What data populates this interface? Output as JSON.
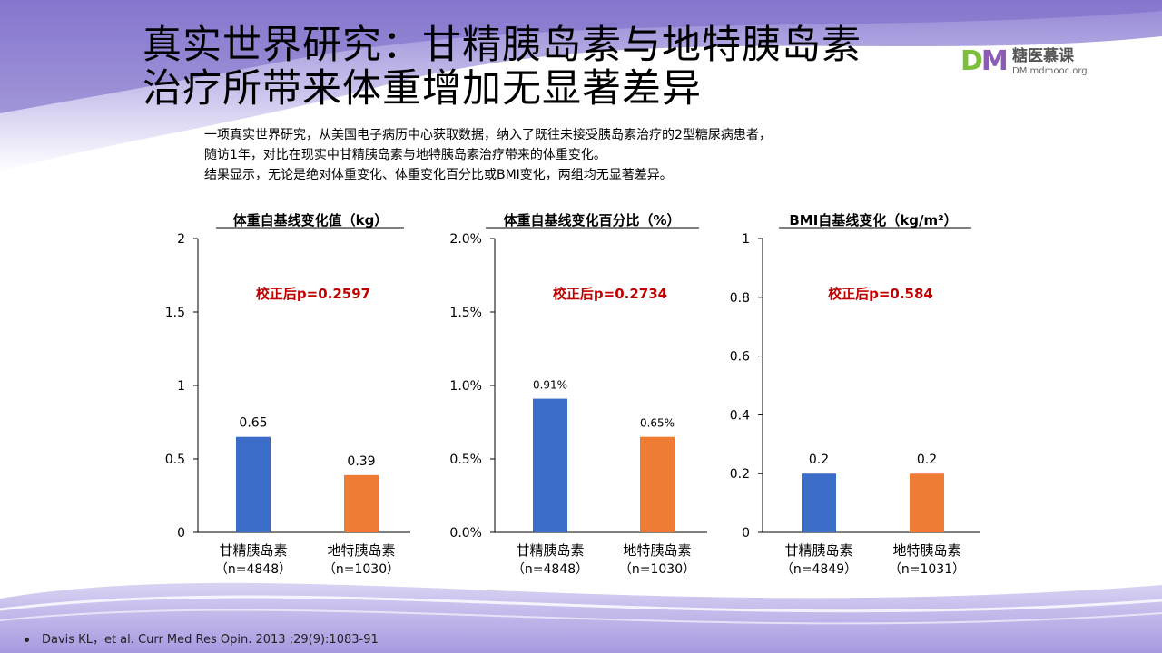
{
  "title": {
    "line1": "真实世界研究：甘精胰岛素与地特胰岛素",
    "line2": "治疗所带来体重增加无显著差异"
  },
  "logo": {
    "name": "糖医慕课",
    "url": "DM.mdmooc.org",
    "icon": "DM-logo"
  },
  "intro": {
    "line1": "一项真实世界研究，从美国电子病历中心获取数据，纳入了既往未接受胰岛素治疗的2型糖尿病患者，",
    "line2": "随访1年，对比在现实中甘精胰岛素与地特胰岛素治疗带来的体重变化。",
    "line3": "结果显示，无论是绝对体重变化、体重变化百分比或BMI变化，两组均无显著差异。"
  },
  "colors": {
    "blue": "#3b6cc8",
    "orange": "#ef7c35",
    "pvalue": "#c00000"
  },
  "chart_data": [
    {
      "type": "bar",
      "title": "体重自基线变化值（kg）",
      "annotation": "校正后p=0.2597",
      "categories": [
        [
          "甘精胰岛素",
          "（n=4848）"
        ],
        [
          "地特胰岛素",
          "（n=1030）"
        ]
      ],
      "values": [
        0.65,
        0.39
      ],
      "value_labels": [
        "0.65",
        "0.39"
      ],
      "ylim": [
        0,
        2
      ],
      "yticks": [
        0,
        0.5,
        1,
        1.5,
        2
      ],
      "ytick_labels": [
        "0",
        "0.5",
        "1",
        "1.5",
        "2"
      ],
      "grid": false
    },
    {
      "type": "bar",
      "title": "体重自基线变化百分比（%）",
      "annotation": "校正后p=0.2734",
      "categories": [
        [
          "甘精胰岛素",
          "（n=4848）"
        ],
        [
          "地特胰岛素",
          "（n=1030）"
        ]
      ],
      "values": [
        0.91,
        0.65
      ],
      "value_labels": [
        "0.91%",
        "0.65%"
      ],
      "ylim": [
        0,
        2
      ],
      "yticks": [
        0,
        0.5,
        1,
        1.5,
        2
      ],
      "ytick_labels": [
        "0.0%",
        "0.5%",
        "1.0%",
        "1.5%",
        "2.0%"
      ],
      "grid": false
    },
    {
      "type": "bar",
      "title": "BMI自基线变化（kg/m²）",
      "annotation": "校正后p=0.584",
      "categories": [
        [
          "甘精胰岛素",
          "（n=4849）"
        ],
        [
          "地特胰岛素",
          "（n=1031）"
        ]
      ],
      "values": [
        0.2,
        0.2
      ],
      "value_labels": [
        "0.2",
        "0.2"
      ],
      "ylim": [
        0,
        1
      ],
      "yticks": [
        0,
        0.2,
        0.4,
        0.6,
        0.8,
        1
      ],
      "ytick_labels": [
        "0",
        "0.2",
        "0.4",
        "0.6",
        "0.8",
        "1"
      ],
      "grid": false
    }
  ],
  "reference": "Davis KL，et al. Curr Med Res Opin. 2013 ;29(9):1083-91"
}
